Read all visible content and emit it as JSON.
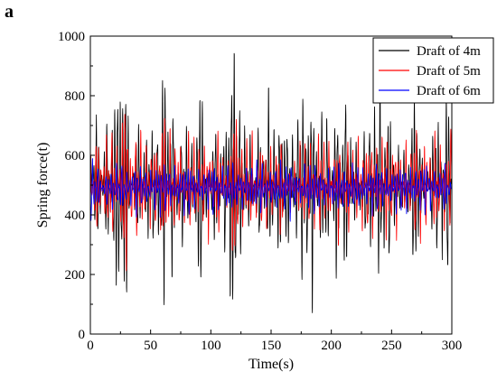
{
  "panel_label": "a",
  "chart_data": {
    "type": "line",
    "title": "",
    "xlabel": "Time(s)",
    "ylabel": "Spring force(t)",
    "xlim": [
      0,
      300
    ],
    "ylim": [
      0,
      1000
    ],
    "xticks": [
      0,
      50,
      100,
      150,
      200,
      250,
      300
    ],
    "yticks": [
      0,
      200,
      400,
      600,
      800,
      1000
    ],
    "grid": false,
    "legend_position": "top-right",
    "series": [
      {
        "name": "Draft of 4m",
        "color": "#000000",
        "mean": 500,
        "wave_period_s": 2.2,
        "envelope_period_s": 57.5,
        "envelope_amplitude_range": [
          130,
          430
        ],
        "x": [
          0,
          5,
          10,
          14,
          18,
          22,
          26,
          30,
          33,
          36,
          40,
          44,
          48,
          52,
          56,
          60,
          62,
          64,
          68,
          72,
          76,
          80,
          84,
          88,
          92,
          96,
          100,
          104,
          108,
          112,
          116,
          120,
          124,
          128,
          132,
          136,
          140,
          144,
          148,
          152,
          156,
          160,
          164,
          168,
          172,
          176,
          180,
          184,
          188,
          192,
          196,
          200,
          204,
          208,
          212,
          216,
          220,
          224,
          228,
          232,
          236,
          240,
          244,
          248,
          252,
          256,
          260,
          264,
          268,
          272,
          276,
          280,
          284,
          288,
          292,
          296,
          300
        ],
        "values": [
          350,
          740,
          520,
          760,
          320,
          130,
          250,
          90,
          460,
          560,
          720,
          400,
          310,
          780,
          240,
          880,
          975,
          230,
          880,
          350,
          760,
          270,
          690,
          320,
          95,
          620,
          430,
          270,
          640,
          190,
          880,
          970,
          140,
          720,
          280,
          560,
          240,
          650,
          140,
          760,
          240,
          380,
          260,
          700,
          200,
          940,
          150,
          970,
          320,
          820,
          220,
          520,
          180,
          470,
          130,
          680,
          310,
          590,
          250,
          800,
          200,
          970,
          230,
          860,
          330,
          660,
          350,
          630,
          150,
          320,
          420,
          560,
          280,
          820,
          240,
          920,
          480
        ]
      },
      {
        "name": "Draft of 5m",
        "color": "#ff0000",
        "mean": 500,
        "wave_period_s": 2.2,
        "envelope_period_s": 57.5,
        "envelope_amplitude_range": [
          150,
          260
        ],
        "x": [
          0,
          5,
          10,
          14,
          18,
          22,
          26,
          30,
          34,
          38,
          42,
          46,
          50,
          54,
          58,
          62,
          66,
          70,
          74,
          78,
          82,
          86,
          90,
          94,
          98,
          102,
          106,
          110,
          114,
          118,
          122,
          126,
          130,
          134,
          138,
          142,
          146,
          150,
          154,
          158,
          162,
          166,
          170,
          174,
          178,
          182,
          186,
          190,
          194,
          198,
          202,
          206,
          210,
          214,
          218,
          222,
          226,
          230,
          234,
          238,
          242,
          246,
          250,
          254,
          258,
          262,
          266,
          270,
          274,
          278,
          282,
          286,
          290,
          294,
          298,
          300
        ],
        "values": [
          380,
          680,
          520,
          700,
          260,
          650,
          300,
          200,
          690,
          260,
          720,
          330,
          680,
          300,
          650,
          740,
          270,
          700,
          300,
          640,
          270,
          690,
          340,
          700,
          300,
          640,
          260,
          610,
          370,
          740,
          720,
          300,
          690,
          280,
          640,
          300,
          680,
          330,
          620,
          280,
          570,
          400,
          610,
          330,
          690,
          300,
          650,
          260,
          690,
          320,
          630,
          280,
          610,
          280,
          650,
          300,
          690,
          290,
          720,
          330,
          690,
          250,
          680,
          300,
          630,
          330,
          650,
          240,
          700,
          300,
          620,
          270,
          680,
          330,
          650,
          770
        ]
      },
      {
        "name": "Draft of 6m",
        "color": "#0000ff",
        "mean": 490,
        "wave_period_s": 2.2,
        "envelope_period_s": 57.5,
        "envelope_amplitude_range": [
          60,
          120
        ],
        "x": [
          0,
          3,
          6,
          10,
          14,
          18,
          22,
          26,
          30,
          34,
          38,
          42,
          46,
          50,
          54,
          58,
          62,
          66,
          70,
          74,
          78,
          82,
          86,
          90,
          94,
          98,
          102,
          106,
          110,
          114,
          118,
          122,
          126,
          130,
          134,
          138,
          142,
          146,
          150,
          154,
          158,
          162,
          166,
          170,
          174,
          178,
          182,
          186,
          190,
          194,
          198,
          202,
          206,
          210,
          214,
          218,
          222,
          226,
          230,
          234,
          238,
          242,
          246,
          250,
          254,
          258,
          262,
          266,
          270,
          274,
          278,
          282,
          286,
          290,
          294,
          298,
          300
        ],
        "values": [
          340,
          420,
          580,
          470,
          560,
          400,
          590,
          380,
          560,
          410,
          600,
          390,
          570,
          420,
          590,
          380,
          610,
          400,
          570,
          410,
          600,
          370,
          580,
          420,
          560,
          390,
          610,
          400,
          580,
          380,
          600,
          410,
          570,
          400,
          590,
          380,
          610,
          420,
          570,
          390,
          590,
          380,
          620,
          410,
          560,
          400,
          600,
          370,
          580,
          420,
          570,
          390,
          600,
          400,
          560,
          380,
          590,
          410,
          570,
          390,
          610,
          400,
          560,
          420,
          590,
          380,
          600,
          410,
          570,
          390,
          620,
          400,
          560,
          420,
          600,
          450,
          500
        ]
      }
    ]
  }
}
